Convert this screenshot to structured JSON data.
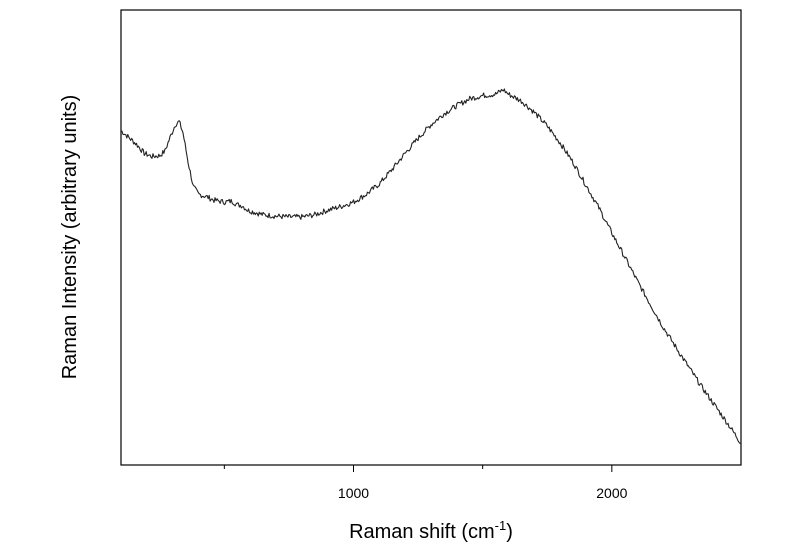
{
  "chart_data": {
    "type": "line",
    "title": "",
    "xlabel": "Raman shift (cm",
    "xlabel_superscript": "-1",
    "xlabel_suffix": ")",
    "ylabel": "Raman Intensity (arbitrary units)",
    "xlim": [
      100,
      2500
    ],
    "ylim": [
      0,
      1
    ],
    "x_ticks_major": [
      {
        "value": 1000,
        "label": "1000"
      },
      {
        "value": 2000,
        "label": "2000"
      }
    ],
    "x_ticks_minor": [
      500,
      1500
    ],
    "y_tick_labels": [],
    "grid": false,
    "legend": "none",
    "series": [
      {
        "color": "#222222",
        "x": [
          100,
          130,
          160,
          190,
          220,
          250,
          270,
          290,
          310,
          325,
          340,
          360,
          380,
          400,
          430,
          460,
          500,
          530,
          550,
          570,
          590,
          620,
          650,
          700,
          750,
          800,
          850,
          900,
          950,
          1000,
          1050,
          1100,
          1150,
          1200,
          1250,
          1300,
          1350,
          1400,
          1450,
          1500,
          1550,
          1580,
          1600,
          1650,
          1700,
          1750,
          1800,
          1850,
          1900,
          1950,
          2000,
          2050,
          2100,
          2150,
          2200,
          2250,
          2300,
          2350,
          2400,
          2450,
          2500
        ],
        "y": [
          0.735,
          0.72,
          0.705,
          0.685,
          0.678,
          0.68,
          0.69,
          0.72,
          0.748,
          0.755,
          0.73,
          0.665,
          0.612,
          0.595,
          0.59,
          0.582,
          0.578,
          0.58,
          0.572,
          0.57,
          0.56,
          0.555,
          0.55,
          0.547,
          0.545,
          0.545,
          0.55,
          0.56,
          0.568,
          0.578,
          0.595,
          0.618,
          0.65,
          0.685,
          0.718,
          0.748,
          0.772,
          0.79,
          0.805,
          0.812,
          0.815,
          0.825,
          0.815,
          0.8,
          0.775,
          0.745,
          0.708,
          0.665,
          0.615,
          0.565,
          0.51,
          0.457,
          0.403,
          0.352,
          0.302,
          0.257,
          0.213,
          0.17,
          0.13,
          0.09,
          0.048
        ]
      }
    ]
  }
}
